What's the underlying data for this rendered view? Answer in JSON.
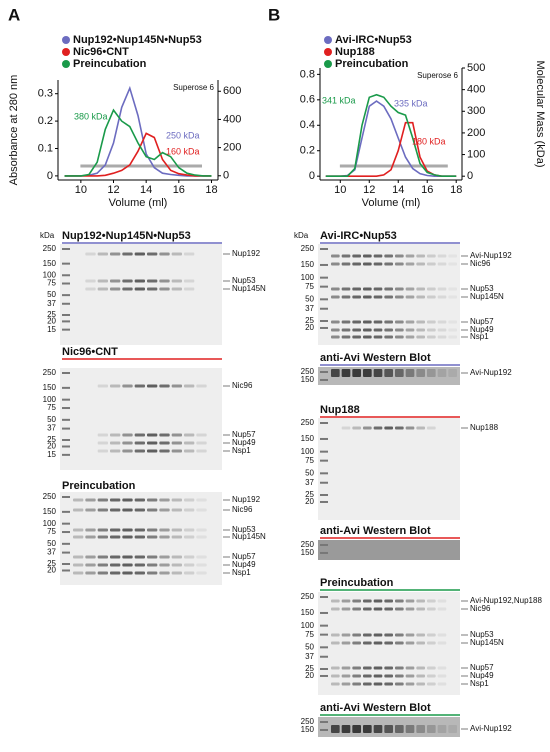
{
  "panels": [
    "A",
    "B"
  ],
  "chart_data": [
    {
      "type": "line",
      "x_label": "Volume (ml)",
      "y_label": "Absorbance at 280 nm",
      "annotations": [
        "Superose 6",
        "380 kDa",
        "250 kDa",
        "160 kDa"
      ],
      "x": [
        9,
        9.5,
        10,
        10.5,
        11,
        11.5,
        12,
        12.5,
        13,
        13.5,
        14,
        14.5,
        15,
        15.5,
        16,
        16.5,
        17,
        17.5,
        18
      ],
      "xlim": [
        8.6,
        18.4
      ],
      "xticks": [
        10,
        12,
        14,
        16,
        18
      ],
      "ylim": [
        -0.015,
        0.35
      ],
      "yticks": [
        0,
        0.1,
        0.2,
        0.3
      ],
      "y2lim": [
        -30,
        680
      ],
      "y2ticks": [
        0,
        200,
        400,
        600
      ],
      "series": [
        {
          "name": "Nup192•Nup145N•Nup53",
          "color": "#6c6cc0",
          "values": [
            0,
            0,
            0,
            0.002,
            0.01,
            0.04,
            0.12,
            0.25,
            0.32,
            0.22,
            0.08,
            0.03,
            0.01,
            0.005,
            0.002,
            0,
            0,
            0,
            0
          ]
        },
        {
          "name": "Nic96•CNT",
          "color": "#e02020",
          "values": [
            0,
            0,
            0,
            0,
            0,
            0.002,
            0.01,
            0.02,
            0.04,
            0.09,
            0.155,
            0.14,
            0.06,
            0.02,
            0.008,
            0.003,
            0,
            0,
            0
          ]
        },
        {
          "name": "Preincubation",
          "color": "#1a9a4a",
          "values": [
            0,
            0,
            0,
            0.005,
            0.05,
            0.17,
            0.24,
            0.2,
            0.18,
            0.12,
            0.07,
            0.06,
            0.085,
            0.07,
            0.03,
            0.01,
            0.003,
            0,
            0
          ]
        }
      ]
    },
    {
      "type": "line",
      "x_label": "Volume (ml)",
      "y2_label": "Molecular Mass (kDa)",
      "annotations": [
        "Superose 6",
        "341 kDa",
        "335 kDa",
        "180 kDa"
      ],
      "x": [
        9,
        9.5,
        10,
        10.5,
        11,
        11.5,
        12,
        12.5,
        13,
        13.5,
        14,
        14.5,
        15,
        15.5,
        16,
        16.5,
        17,
        17.5,
        18
      ],
      "xlim": [
        8.6,
        18.4
      ],
      "xticks": [
        10,
        12,
        14,
        16,
        18
      ],
      "ylim": [
        -0.03,
        0.85
      ],
      "yticks": [
        0,
        0.2,
        0.4,
        0.6,
        0.8
      ],
      "y2lim": [
        -17.6,
        500
      ],
      "y2ticks": [
        0,
        100,
        200,
        300,
        400,
        500
      ],
      "series": [
        {
          "name": "Avi-IRC•Nup53",
          "color": "#6c6cc0",
          "values": [
            0,
            0,
            0,
            0.005,
            0.05,
            0.3,
            0.55,
            0.59,
            0.55,
            0.45,
            0.3,
            0.15,
            0.06,
            0.02,
            0.005,
            0,
            0,
            0,
            0
          ]
        },
        {
          "name": "Nup188",
          "color": "#e02020",
          "values": [
            0,
            0,
            0,
            0,
            0,
            0,
            0,
            0,
            0.01,
            0.05,
            0.2,
            0.42,
            0.42,
            0.15,
            0.04,
            0.01,
            0,
            0,
            0
          ]
        },
        {
          "name": "Preincubation",
          "color": "#1a9a4a",
          "values": [
            0,
            0,
            0,
            0,
            0.06,
            0.4,
            0.62,
            0.64,
            0.62,
            0.55,
            0.5,
            0.48,
            0.3,
            0.1,
            0.03,
            0.01,
            0,
            0,
            0
          ]
        }
      ]
    }
  ],
  "kda_label": "kDa",
  "gels": [
    [
      {
        "title": "Nup192•Nup145N•Nup53",
        "color": "#6c6cc0",
        "markers": [
          250,
          150,
          100,
          75,
          50,
          37,
          25,
          20,
          15
        ],
        "labels": [
          "Nup192",
          "Nup53",
          "Nup145N"
        ]
      },
      {
        "title": "Nic96•CNT",
        "color": "#e02020",
        "markers": [
          250,
          150,
          100,
          75,
          50,
          37,
          25,
          20,
          15
        ],
        "labels": [
          "Nic96",
          "Nup57",
          "Nup49",
          "Nsp1"
        ]
      },
      {
        "title": "Preincubation",
        "color": "#1a9a4a",
        "markers": [
          250,
          150,
          100,
          75,
          50,
          37,
          25,
          20
        ],
        "labels": [
          "Nup192",
          "Nic96",
          "Nup53",
          "Nup145N",
          "Nup57",
          "Nup49",
          "Nsp1"
        ]
      }
    ],
    [
      {
        "title": "Avi-IRC•Nup53",
        "color": "#6c6cc0",
        "markers": [
          250,
          150,
          100,
          75,
          50,
          37,
          25,
          20
        ],
        "labels": [
          "Avi-Nup192",
          "Nic96",
          "Nup53",
          "Nup145N",
          "Nup57",
          "Nup49",
          "Nsp1"
        ]
      },
      {
        "title": "anti-Avi Western Blot",
        "color": "#6c6cc0",
        "markers": [
          250,
          150
        ],
        "labels": [
          "Avi-Nup192"
        ]
      },
      {
        "title": "Nup188",
        "color": "#e02020",
        "markers": [
          250,
          150,
          100,
          75,
          50,
          37,
          25,
          20
        ],
        "labels": [
          "Nup188"
        ]
      },
      {
        "title": "anti-Avi Western Blot",
        "color": "#e02020",
        "markers": [
          250,
          150
        ],
        "labels": []
      },
      {
        "title": "Preincubation",
        "color": "#1a9a4a",
        "markers": [
          250,
          150,
          100,
          75,
          50,
          37,
          25,
          20
        ],
        "labels": [
          "Avi-Nup192,Nup188",
          "Nic96",
          "Nup53",
          "Nup145N",
          "Nup57",
          "Nup49",
          "Nsp1"
        ]
      },
      {
        "title": "anti-Avi Western Blot",
        "color": "#1a9a4a",
        "markers": [
          250,
          150
        ],
        "labels": [
          "Avi-Nup192"
        ]
      }
    ]
  ]
}
